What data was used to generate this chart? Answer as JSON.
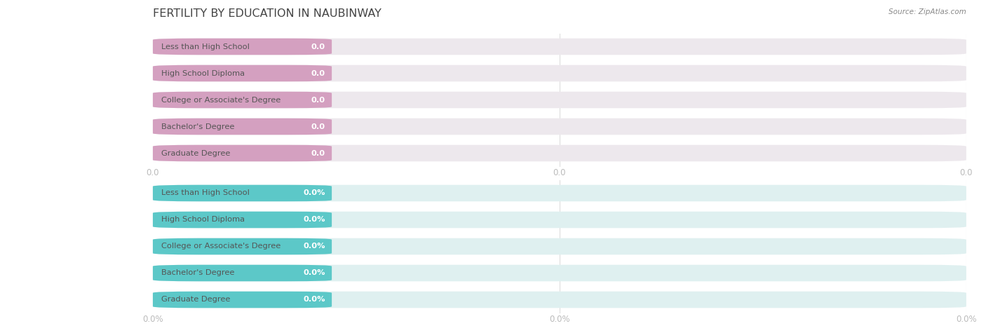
{
  "title": "FERTILITY BY EDUCATION IN NAUBINWAY",
  "source": "Source: ZipAtlas.com",
  "categories": [
    "Less than High School",
    "High School Diploma",
    "College or Associate's Degree",
    "Bachelor's Degree",
    "Graduate Degree"
  ],
  "top_values": [
    0.0,
    0.0,
    0.0,
    0.0,
    0.0
  ],
  "bottom_values": [
    0.0,
    0.0,
    0.0,
    0.0,
    0.0
  ],
  "top_color": "#d4a0c0",
  "top_bg_color": "#ede8ed",
  "bottom_color": "#5cc8c8",
  "bottom_bg_color": "#dff0f0",
  "top_tick_labels": [
    "0.0",
    "0.0",
    "0.0"
  ],
  "bottom_tick_labels": [
    "0.0%",
    "0.0%",
    "0.0%"
  ],
  "background_color": "#ffffff",
  "title_color": "#444444",
  "label_color": "#555555",
  "tick_color": "#bbbbbb",
  "grid_color": "#dddddd",
  "bar_height": 0.62,
  "fig_width": 14.06,
  "fig_height": 4.75,
  "dpi": 100
}
